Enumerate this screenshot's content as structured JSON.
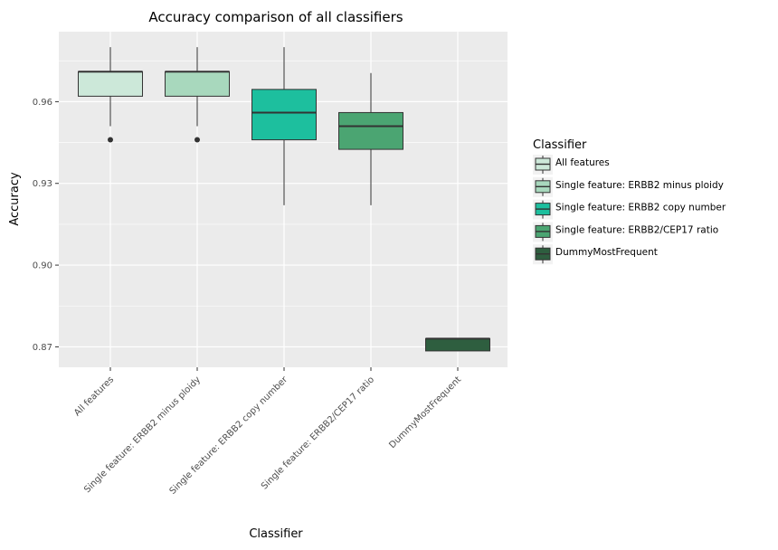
{
  "chart_data": {
    "type": "boxplot",
    "title": "Accuracy comparison of all classifiers",
    "xlabel": "Classifier",
    "ylabel": "Accuracy",
    "ylim": [
      0.8625,
      0.9857
    ],
    "yticks": [
      0.87,
      0.9,
      0.93,
      0.96
    ],
    "ytick_labels": [
      "0.87",
      "0.90",
      "0.93",
      "0.96"
    ],
    "grid": true,
    "legend": {
      "title": "Classifier",
      "placement": "right"
    },
    "categories": [
      "All features",
      "Single feature: ERBB2 minus ploidy",
      "Single feature: ERBB2 copy number",
      "Single feature: ERBB2/CEP17 ratio",
      "DummyMostFrequent"
    ],
    "boxes": [
      {
        "name": "All features",
        "color": "#cce8d9",
        "whisker_low": 0.951,
        "q1": 0.962,
        "median": 0.971,
        "q3": 0.971,
        "whisker_high": 0.98,
        "outliers": [
          0.946
        ]
      },
      {
        "name": "Single feature: ERBB2 minus ploidy",
        "color": "#a8d8bd",
        "whisker_low": 0.951,
        "q1": 0.962,
        "median": 0.971,
        "q3": 0.971,
        "whisker_high": 0.98,
        "outliers": [
          0.946
        ]
      },
      {
        "name": "Single feature: ERBB2 copy number",
        "color": "#1dbf9e",
        "whisker_low": 0.922,
        "q1": 0.946,
        "median": 0.956,
        "q3": 0.9645,
        "whisker_high": 0.98,
        "outliers": []
      },
      {
        "name": "Single feature: ERBB2/CEP17 ratio",
        "color": "#4ba572",
        "whisker_low": 0.922,
        "q1": 0.9425,
        "median": 0.951,
        "q3": 0.956,
        "whisker_high": 0.9705,
        "outliers": []
      },
      {
        "name": "DummyMostFrequent",
        "color": "#2e5e3f",
        "whisker_low": 0.8685,
        "q1": 0.8685,
        "median": 0.873,
        "q3": 0.873,
        "whisker_high": 0.873,
        "outliers": []
      }
    ]
  }
}
